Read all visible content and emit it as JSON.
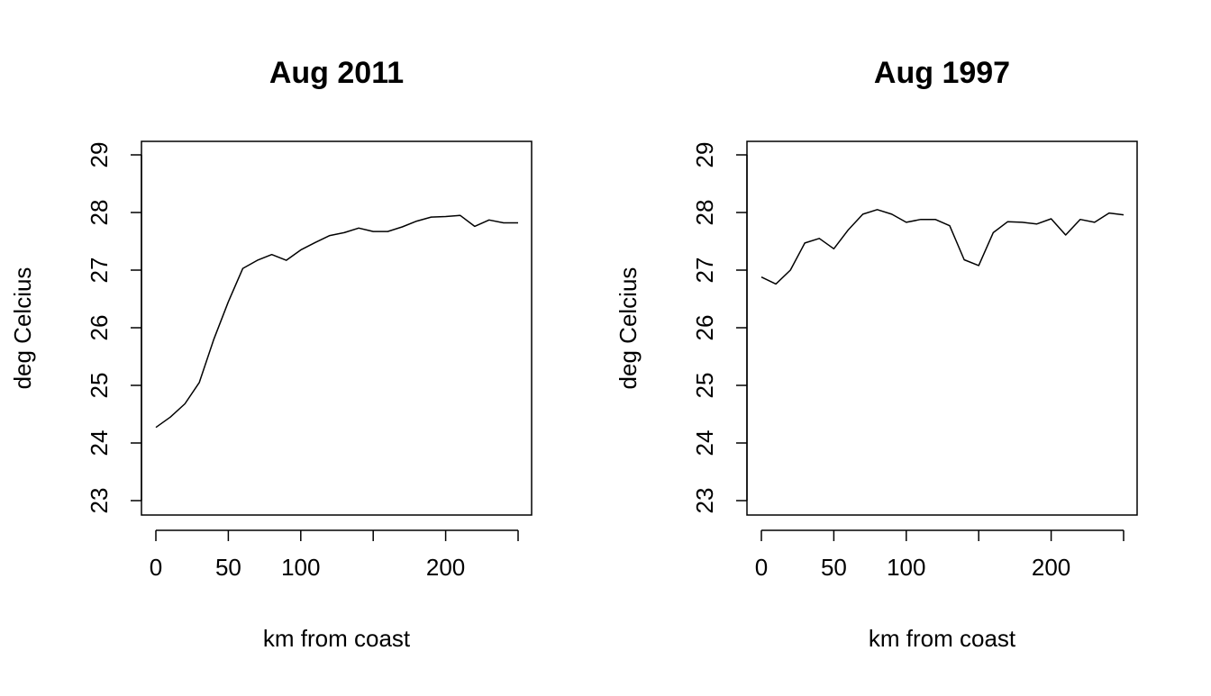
{
  "chart_data": [
    {
      "type": "line",
      "title": "Aug 2011",
      "xlabel": "km from coast",
      "ylabel": "deg Celcius",
      "xlim": [
        0,
        250
      ],
      "ylim": [
        23,
        29
      ],
      "xticks": [
        0,
        50,
        100,
        150,
        200,
        250
      ],
      "xtick_labels": [
        "0",
        "50",
        "100",
        "",
        "200",
        ""
      ],
      "yticks": [
        23,
        24,
        25,
        26,
        27,
        28,
        29
      ],
      "ytick_labels": [
        "23",
        "24",
        "25",
        "26",
        "27",
        "28",
        "29"
      ],
      "grid": false,
      "x": [
        0,
        10,
        20,
        30,
        40,
        50,
        60,
        70,
        80,
        90,
        100,
        110,
        120,
        130,
        140,
        150,
        160,
        170,
        180,
        190,
        200,
        210,
        220,
        230,
        240,
        250
      ],
      "y": [
        24.27,
        24.45,
        24.68,
        25.05,
        25.8,
        26.45,
        27.03,
        27.17,
        27.27,
        27.17,
        27.35,
        27.48,
        27.6,
        27.65,
        27.73,
        27.67,
        27.67,
        27.75,
        27.85,
        27.92,
        27.93,
        27.95,
        27.76,
        27.87,
        27.82,
        27.82
      ]
    },
    {
      "type": "line",
      "title": "Aug 1997",
      "xlabel": "km from coast",
      "ylabel": "deg Celcius",
      "xlim": [
        0,
        250
      ],
      "ylim": [
        23,
        29
      ],
      "xticks": [
        0,
        50,
        100,
        150,
        200,
        250
      ],
      "xtick_labels": [
        "0",
        "50",
        "100",
        "",
        "200",
        ""
      ],
      "yticks": [
        23,
        24,
        25,
        26,
        27,
        28,
        29
      ],
      "ytick_labels": [
        "23",
        "24",
        "25",
        "26",
        "27",
        "28",
        "29"
      ],
      "grid": false,
      "x": [
        0,
        10,
        20,
        30,
        40,
        50,
        60,
        70,
        80,
        90,
        100,
        110,
        120,
        130,
        140,
        150,
        160,
        170,
        180,
        190,
        200,
        210,
        220,
        230,
        240,
        250
      ],
      "y": [
        26.88,
        26.76,
        27.0,
        27.47,
        27.55,
        27.37,
        27.7,
        27.97,
        28.05,
        27.97,
        27.83,
        27.88,
        27.88,
        27.77,
        27.18,
        27.08,
        27.65,
        27.84,
        27.83,
        27.8,
        27.89,
        27.61,
        27.88,
        27.83,
        27.99,
        27.96
      ]
    }
  ]
}
